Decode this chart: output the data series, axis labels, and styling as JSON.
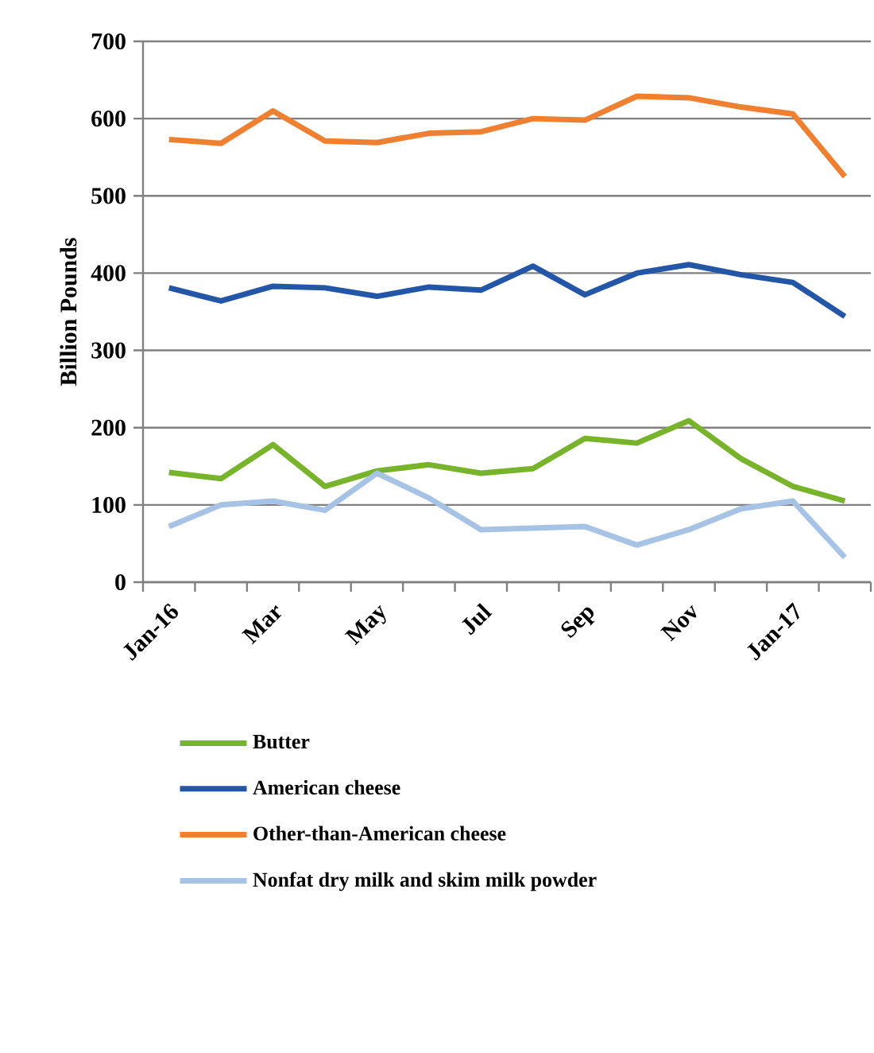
{
  "chart_data": {
    "type": "line",
    "ylabel": "Billion Pounds",
    "categories": [
      "Jan-16",
      null,
      "Mar",
      null,
      "May",
      null,
      "Jul",
      null,
      "Sep",
      null,
      "Nov",
      null,
      "Jan-17",
      null
    ],
    "series": [
      {
        "name": "Butter",
        "color": "#77b32b",
        "values": [
          142,
          134,
          178,
          124,
          144,
          152,
          141,
          147,
          186,
          180,
          209,
          160,
          124,
          105
        ]
      },
      {
        "name": "American cheese",
        "color": "#2356a6",
        "values": [
          381,
          364,
          383,
          381,
          370,
          382,
          378,
          409,
          372,
          400,
          411,
          398,
          388,
          344
        ]
      },
      {
        "name": "Other-than-American cheese",
        "color": "#ef7f31",
        "values": [
          573,
          568,
          610,
          571,
          569,
          581,
          583,
          600,
          598,
          629,
          627,
          615,
          606,
          525
        ]
      },
      {
        "name": "Nonfat dry milk and skim milk powder",
        "color": "#a6c3e6",
        "values": [
          72,
          100,
          105,
          93,
          141,
          109,
          68,
          70,
          72,
          48,
          68,
          95,
          105,
          32
        ]
      }
    ],
    "ylim": [
      0,
      700
    ],
    "yticks": [
      0,
      100,
      200,
      300,
      400,
      500,
      600,
      700
    ],
    "grid": "y",
    "legend": "bottom",
    "marker": "none",
    "line_style": "solid"
  }
}
